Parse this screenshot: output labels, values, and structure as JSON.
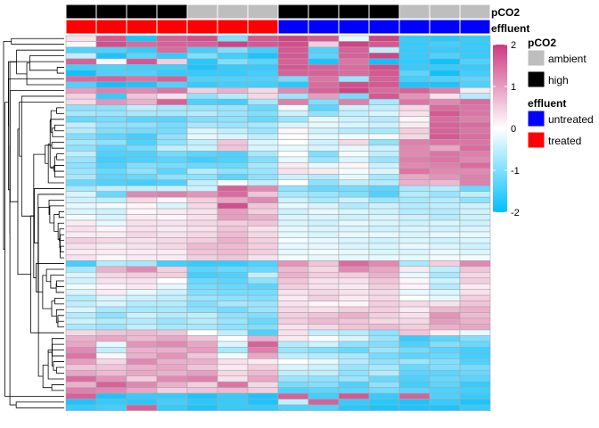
{
  "chart_data": {
    "type": "heatmap",
    "rows": 65,
    "columns": 14,
    "annotations": {
      "pCO2": {
        "label": "pCO2",
        "values": [
          "high",
          "high",
          "high",
          "high",
          "ambient",
          "ambient",
          "ambient",
          "high",
          "high",
          "high",
          "high",
          "ambient",
          "ambient",
          "ambient"
        ]
      },
      "effluent": {
        "label": "effluent",
        "values": [
          "treated",
          "treated",
          "treated",
          "treated",
          "treated",
          "treated",
          "treated",
          "untreated",
          "untreated",
          "untreated",
          "untreated",
          "untreated",
          "untreated",
          "untreated"
        ]
      }
    },
    "colorbar": {
      "min": -2,
      "max": 2,
      "ticks": [
        "2",
        "1",
        "0",
        "-1",
        "-2"
      ],
      "colors": {
        "low": "#00bfff",
        "mid": "#ffffff",
        "high": "#cd3a7f"
      }
    },
    "legend": {
      "pCO2": {
        "title": "pCO2",
        "items": [
          {
            "label": "ambient",
            "color": "#bebebe"
          },
          {
            "label": "high",
            "color": "#000000"
          }
        ]
      },
      "effluent": {
        "title": "effluent",
        "items": [
          {
            "label": "untreated",
            "color": "#0000ff"
          },
          {
            "label": "treated",
            "color": "#ff0000"
          }
        ]
      }
    },
    "values": [
      [
        0.3,
        1.7,
        -1.8,
        1.6,
        1.8,
        -1.0,
        1.7,
        1.9,
        1.7,
        -0.2,
        1.9,
        -1.6,
        -1.7,
        -1.6
      ],
      [
        0.1,
        1.8,
        1.5,
        1.6,
        1.6,
        1.9,
        1.7,
        1.8,
        0.5,
        1.9,
        1.7,
        -1.6,
        -1.5,
        -1.6
      ],
      [
        -1.4,
        -1.4,
        -1.6,
        1.5,
        -1.5,
        -1.0,
        -1.5,
        1.7,
        -1.4,
        1.6,
        -0.5,
        -1.6,
        -1.6,
        -1.6
      ],
      [
        -0.5,
        -1.8,
        -1.3,
        -1.6,
        -1.0,
        -1.5,
        -1.8,
        1.7,
        -1.3,
        1.6,
        1.9,
        -1.6,
        -1.4,
        -1.6
      ],
      [
        1.6,
        0.1,
        1.7,
        0.5,
        -1.7,
        -1.0,
        -1.3,
        1.6,
        -1.8,
        1.4,
        -1.9,
        -1.6,
        -1.9,
        -1.4
      ],
      [
        -1.5,
        -1.4,
        -1.5,
        -1.5,
        -1.8,
        -1.6,
        -1.6,
        1.7,
        1.6,
        1.5,
        1.8,
        -1.6,
        -1.6,
        -1.6
      ],
      [
        -1.9,
        -1.4,
        -1.4,
        -1.6,
        -1.6,
        -1.6,
        -1.5,
        1.6,
        1.6,
        1.5,
        1.7,
        -1.3,
        -1.9,
        -1.5
      ],
      [
        1.5,
        1.6,
        1.4,
        1.6,
        -1.4,
        -1.4,
        -1.4,
        -1.1,
        1.4,
        -0.8,
        1.6,
        -1.5,
        -1.4,
        -1.3
      ],
      [
        -1.4,
        -1.9,
        -1.8,
        -1.4,
        -1.6,
        -1.5,
        -1.5,
        -1.7,
        1.5,
        1.8,
        1.7,
        -1.8,
        -1.8,
        -1.4
      ],
      [
        1.0,
        1.3,
        1.2,
        1.4,
        0.5,
        0.8,
        0.4,
        1.2,
        1.6,
        1.9,
        1.5,
        1.6,
        1.3,
        0.2
      ],
      [
        0.5,
        -1.6,
        0.6,
        0.3,
        -0.9,
        -0.6,
        0.4,
        -0.8,
        1.0,
        -1.1,
        1.7,
        1.1,
        0.3,
        -0.6
      ],
      [
        0.4,
        1.1,
        0.8,
        1.6,
        -1.4,
        -1.5,
        -0.7,
        1.3,
        -1.0,
        1.3,
        -0.7,
        1.4,
        1.2,
        1.5
      ],
      [
        -0.9,
        -0.9,
        -0.5,
        -0.7,
        -0.8,
        -0.8,
        -1.2,
        -0.1,
        -1.3,
        -0.4,
        -0.5,
        0.4,
        1.5,
        1.4
      ],
      [
        -0.7,
        -0.8,
        -0.7,
        -0.7,
        -0.6,
        -0.8,
        -1.0,
        -0.4,
        -0.9,
        -0.5,
        -0.3,
        0.3,
        1.7,
        1.4
      ],
      [
        -1.2,
        -1.1,
        -1.3,
        -1.3,
        -1.0,
        -0.9,
        -1.2,
        -0.8,
        -0.2,
        -0.4,
        -0.6,
        0.1,
        1.5,
        1.3
      ],
      [
        -0.5,
        -0.9,
        -0.9,
        -1.1,
        -0.7,
        -0.8,
        -0.7,
        -0.3,
        -0.2,
        -0.3,
        -0.4,
        0.2,
        1.6,
        1.5
      ],
      [
        -0.6,
        -1.0,
        -1.1,
        -1.1,
        -0.3,
        -0.5,
        -0.8,
        0.1,
        -0.4,
        -0.6,
        -0.7,
        0.5,
        1.6,
        1.4
      ],
      [
        -1.0,
        -1.3,
        -1.5,
        -0.9,
        -0.2,
        -0.3,
        -0.5,
        0.0,
        -0.2,
        -0.1,
        -0.1,
        0.4,
        1.7,
        1.5
      ],
      [
        -0.7,
        -0.9,
        -1.4,
        -0.9,
        -0.5,
        0.6,
        -0.3,
        0.0,
        -0.4,
        0.4,
        -0.9,
        1.3,
        1.4,
        1.4
      ],
      [
        -0.9,
        -1.3,
        -1.1,
        -0.5,
        -0.4,
        0.6,
        -0.3,
        -0.2,
        -0.3,
        -0.2,
        -0.4,
        1.2,
        0.9,
        1.5
      ],
      [
        -0.5,
        -1.4,
        -1.4,
        -1.1,
        -1.3,
        -1.4,
        -0.7,
        0.0,
        -1.0,
        -0.1,
        -0.5,
        1.2,
        1.4,
        1.3
      ],
      [
        -0.8,
        -1.5,
        -1.4,
        -1.3,
        -1.5,
        -1.4,
        -1.0,
        -0.2,
        -0.8,
        -0.3,
        -0.8,
        1.3,
        1.4,
        1.2
      ],
      [
        -0.9,
        -1.4,
        -1.0,
        -1.1,
        -1.2,
        -1.2,
        -0.7,
        0.2,
        -0.2,
        0.1,
        -0.4,
        1.2,
        1.3,
        1.5
      ],
      [
        -0.8,
        -1.2,
        -0.9,
        -1.3,
        -0.6,
        -0.9,
        -0.8,
        0.3,
        0.2,
        -0.1,
        -0.3,
        1.4,
        1.2,
        1.2
      ],
      [
        -0.7,
        -1.3,
        -1.2,
        -0.9,
        -0.9,
        -1.3,
        -0.9,
        -0.4,
        -0.6,
        -0.2,
        -0.7,
        0.9,
        1.1,
        1.3
      ],
      [
        -1.2,
        -1.4,
        -1.5,
        -1.4,
        -0.5,
        -0.1,
        -0.5,
        0.0,
        -0.9,
        -0.5,
        -0.6,
        0.8,
        0.7,
        1.3
      ],
      [
        -0.7,
        -0.5,
        -0.5,
        -0.4,
        -0.4,
        1.6,
        1.2,
        -0.9,
        -1.2,
        -1.1,
        -1.3,
        -0.7,
        -0.6,
        -1.2
      ],
      [
        -0.3,
        -1.2,
        1.2,
        1.3,
        1.1,
        1.5,
        0.6,
        -0.7,
        -0.8,
        -1.0,
        -1.4,
        -0.6,
        -0.8,
        -0.5
      ],
      [
        -0.4,
        -0.5,
        0.4,
        0.1,
        0.5,
        0.9,
        1.2,
        -0.4,
        -0.7,
        -0.4,
        -0.8,
        -0.7,
        -0.6,
        -0.9
      ],
      [
        -0.2,
        -0.1,
        0.1,
        -0.3,
        0.4,
        1.8,
        0.6,
        -0.2,
        -0.3,
        -0.6,
        -0.4,
        -0.6,
        -0.5,
        -0.4
      ],
      [
        -0.3,
        -0.4,
        0.1,
        0.2,
        0.3,
        1.0,
        0.5,
        -0.4,
        -0.2,
        -0.3,
        -0.4,
        -0.6,
        -0.6,
        -0.4
      ],
      [
        -0.1,
        -0.3,
        0.2,
        0.1,
        0.3,
        1.0,
        0.8,
        -0.3,
        -0.3,
        -0.4,
        -0.3,
        -0.4,
        -0.6,
        -0.4
      ],
      [
        0.2,
        -0.2,
        0.3,
        0.3,
        0.4,
        0.5,
        0.6,
        -0.3,
        -0.4,
        -0.2,
        -0.3,
        -0.4,
        -0.3,
        -0.4
      ],
      [
        0.3,
        0.1,
        0.3,
        0.2,
        0.3,
        0.6,
        0.3,
        -0.2,
        -0.3,
        -0.3,
        -0.4,
        -0.3,
        -0.4,
        -0.3
      ],
      [
        0.2,
        0.2,
        0.4,
        0.3,
        0.4,
        0.7,
        0.4,
        -0.2,
        -0.3,
        -0.2,
        -0.2,
        -0.3,
        -0.2,
        -0.2
      ],
      [
        0.5,
        0.4,
        0.3,
        0.4,
        0.5,
        0.8,
        0.5,
        -0.1,
        -0.2,
        -0.3,
        -0.4,
        -0.3,
        -0.4,
        -0.3
      ],
      [
        0.3,
        0.2,
        0.3,
        0.4,
        0.7,
        0.7,
        0.5,
        -0.2,
        -0.2,
        -0.3,
        -0.3,
        -0.2,
        -0.3,
        -0.4
      ],
      [
        0.2,
        0.2,
        0.2,
        0.2,
        0.6,
        0.7,
        0.5,
        -0.2,
        -0.1,
        -0.2,
        -0.3,
        -0.3,
        -0.2,
        -0.3
      ],
      [
        0.3,
        0.1,
        0.2,
        0.2,
        0.5,
        0.6,
        0.3,
        -0.1,
        -0.2,
        -0.2,
        -0.2,
        -0.2,
        -0.1,
        -0.1
      ],
      [
        -1.5,
        -0.6,
        -0.7,
        -1.5,
        -1.6,
        -1.6,
        -1.4,
        1.1,
        0.6,
        1.5,
        1.2,
        -0.7,
        0.5,
        1.2
      ],
      [
        -0.7,
        0.8,
        1.2,
        0.5,
        -1.3,
        -1.2,
        -1.2,
        0.7,
        0.4,
        1.2,
        0.9,
        0.2,
        -0.5,
        0.6
      ],
      [
        -0.3,
        0.4,
        0.5,
        0.5,
        -1.5,
        -1.4,
        -0.5,
        0.8,
        0.5,
        0.5,
        0.8,
        -0.2,
        -0.7,
        0.4
      ],
      [
        -0.4,
        0.3,
        0.3,
        0.0,
        -1.2,
        -1.3,
        -0.9,
        0.6,
        0.3,
        0.3,
        0.6,
        0.1,
        -0.4,
        0.5
      ],
      [
        -0.1,
        0.1,
        0.2,
        -0.2,
        -1.1,
        -1.2,
        -1.3,
        0.5,
        0.3,
        0.2,
        0.5,
        0.1,
        -0.6,
        0.2
      ],
      [
        -0.3,
        0.2,
        -0.2,
        -0.4,
        -1.0,
        -1.1,
        -1.1,
        0.3,
        0.4,
        0.3,
        0.4,
        -0.2,
        -0.3,
        0.3
      ],
      [
        -0.6,
        -0.3,
        -0.4,
        -0.5,
        -0.8,
        -0.9,
        -1.0,
        0.2,
        0.5,
        0.2,
        0.4,
        0.0,
        -0.2,
        0.5
      ],
      [
        -0.5,
        -0.3,
        -0.6,
        -0.6,
        -1.0,
        -0.7,
        -0.8,
        0.3,
        0.1,
        0.1,
        0.5,
        0.4,
        0.3,
        0.6
      ],
      [
        -0.3,
        -0.7,
        -0.7,
        -0.7,
        -0.9,
        -1.1,
        -0.8,
        0.4,
        0.3,
        0.5,
        0.5,
        0.2,
        0.7,
        0.8
      ],
      [
        -0.6,
        -0.9,
        -0.4,
        -0.6,
        -0.5,
        -0.9,
        -1.0,
        0.5,
        0.6,
        0.8,
        0.5,
        0.3,
        1.1,
        0.7
      ],
      [
        -0.4,
        -0.6,
        -0.6,
        -0.8,
        -0.6,
        -0.8,
        -1.2,
        0.5,
        0.7,
        0.6,
        0.4,
        0.4,
        1.0,
        0.8
      ],
      [
        -0.7,
        -0.8,
        -0.5,
        -0.7,
        -0.7,
        -0.9,
        -1.0,
        0.3,
        0.4,
        0.6,
        0.7,
        0.5,
        0.8,
        0.9
      ],
      [
        0.4,
        0.6,
        0.7,
        0.6,
        0.0,
        -0.5,
        -1.4,
        0.3,
        -0.5,
        -0.6,
        -0.9,
        0.6,
        0.2,
        -0.2
      ],
      [
        0.8,
        0.9,
        0.7,
        0.9,
        0.6,
        0.0,
        0.8,
        0.2,
        0.0,
        -0.3,
        -0.8,
        -1.6,
        -1.3,
        -1.0
      ],
      [
        0.9,
        -0.2,
        1.1,
        1.2,
        0.9,
        -0.3,
        1.6,
        -0.6,
        -0.4,
        -0.9,
        -1.0,
        -1.4,
        -1.0,
        -1.2
      ],
      [
        1.2,
        -0.5,
        0.8,
        0.8,
        1.0,
        -0.7,
        1.3,
        -0.8,
        -1.0,
        -1.2,
        -0.8,
        -1.1,
        -1.3,
        -1.5
      ],
      [
        1.4,
        0.1,
        0.8,
        1.1,
        0.6,
        -0.1,
        0.9,
        -0.5,
        -0.6,
        -0.7,
        -1.1,
        -1.3,
        -1.2,
        -1.5
      ],
      [
        1.0,
        0.4,
        1.2,
        0.8,
        0.8,
        0.3,
        0.2,
        0.0,
        -0.2,
        -0.6,
        -0.9,
        -0.8,
        -1.0,
        -1.4
      ],
      [
        0.6,
        0.6,
        0.8,
        0.9,
        0.6,
        0.2,
        0.5,
        -0.3,
        -0.4,
        -0.8,
        -0.7,
        -1.2,
        -1.0,
        -1.1
      ],
      [
        0.9,
        0.7,
        0.9,
        0.8,
        1.0,
        0.4,
        0.7,
        -0.5,
        -0.5,
        -0.9,
        -0.6,
        -1.3,
        -1.3,
        -1.2
      ],
      [
        1.5,
        1.1,
        0.5,
        1.2,
        1.3,
        0.3,
        0.9,
        -0.8,
        -0.9,
        -0.8,
        -1.2,
        -1.4,
        -1.2,
        -1.3
      ],
      [
        0.8,
        1.6,
        1.2,
        0.8,
        0.5,
        1.4,
        0.4,
        -1.1,
        -1.0,
        -1.4,
        -0.9,
        -1.5,
        -1.3,
        -1.6
      ],
      [
        1.3,
        1.2,
        0.9,
        0.5,
        0.6,
        0.7,
        0.5,
        -1.4,
        -1.3,
        -1.3,
        -1.1,
        -1.3,
        -1.4,
        -1.5
      ],
      [
        1.6,
        -1.8,
        -1.6,
        -1.6,
        -1.8,
        -1.6,
        -1.8,
        1.6,
        -1.5,
        1.7,
        -1.6,
        1.6,
        -1.4,
        -1.6
      ],
      [
        -1.8,
        -1.6,
        -1.7,
        -1.5,
        -1.7,
        -1.6,
        -1.8,
        -0.5,
        1.6,
        -1.6,
        -1.7,
        -1.8,
        -1.6,
        -1.8
      ],
      [
        -1.6,
        -1.5,
        1.6,
        -1.6,
        -1.8,
        -1.6,
        -1.6,
        -1.4,
        -1.4,
        -1.7,
        -1.8,
        -1.8,
        -1.8,
        -1.6
      ]
    ]
  }
}
